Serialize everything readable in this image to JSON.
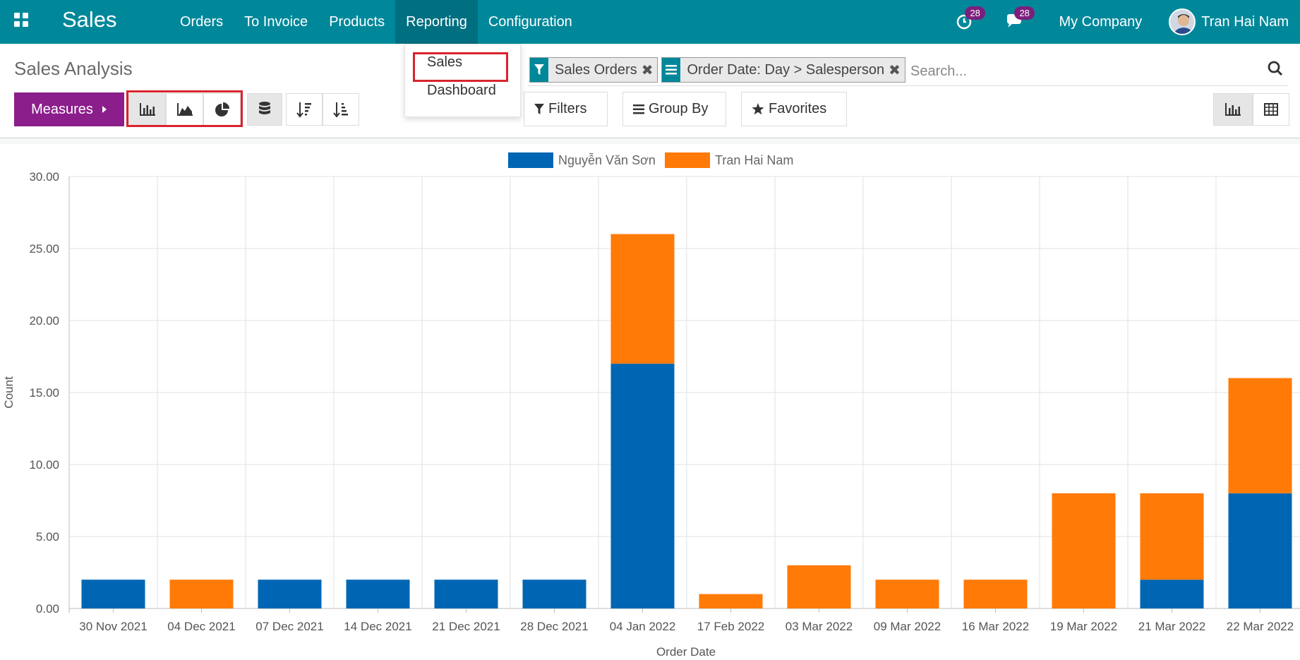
{
  "navbar": {
    "app_title": "Sales",
    "menu": [
      "Orders",
      "To Invoice",
      "Products",
      "Reporting",
      "Configuration"
    ],
    "activity_count": "28",
    "message_count": "28",
    "company": "My Company",
    "user_name": "Tran Hai Nam"
  },
  "reporting_dropdown": {
    "items": [
      "Sales",
      "Dashboard"
    ]
  },
  "control_panel": {
    "title": "Sales Analysis",
    "measures_label": "Measures",
    "facets": [
      "Sales Orders",
      "Order Date: Day > Salesperson"
    ],
    "search_placeholder": "Search...",
    "filters_label": "Filters",
    "group_by_label": "Group By",
    "favorites_label": "Favorites"
  },
  "colors": {
    "navbar": "#00889a",
    "primary": "#8b1e8b",
    "series_1": "#0066b3",
    "series_2": "#ff7a07",
    "highlight": "#d9232e"
  },
  "chart_data": {
    "type": "bar",
    "stacked": true,
    "title": "",
    "xlabel": "Order Date",
    "ylabel": "Count",
    "ylim": [
      0,
      30
    ],
    "y_ticks": [
      "0.00",
      "5.00",
      "10.00",
      "15.00",
      "20.00",
      "25.00",
      "30.00"
    ],
    "categories": [
      "30 Nov 2021",
      "04 Dec 2021",
      "07 Dec 2021",
      "14 Dec 2021",
      "21 Dec 2021",
      "28 Dec 2021",
      "04 Jan 2022",
      "17 Feb 2022",
      "03 Mar 2022",
      "09 Mar 2022",
      "16 Mar 2022",
      "19 Mar 2022",
      "21 Mar 2022",
      "22 Mar 2022"
    ],
    "series": [
      {
        "name": "Nguyễn Văn Sơn",
        "color": "#0066b3",
        "values": [
          2,
          0,
          2,
          2,
          2,
          2,
          17,
          0,
          0,
          0,
          0,
          0,
          2,
          8
        ]
      },
      {
        "name": "Tran Hai Nam",
        "color": "#ff7a07",
        "values": [
          0,
          2,
          0,
          0,
          0,
          0,
          9,
          1,
          3,
          2,
          2,
          8,
          6,
          8
        ]
      }
    ],
    "grid": true,
    "legend": "top-center"
  }
}
